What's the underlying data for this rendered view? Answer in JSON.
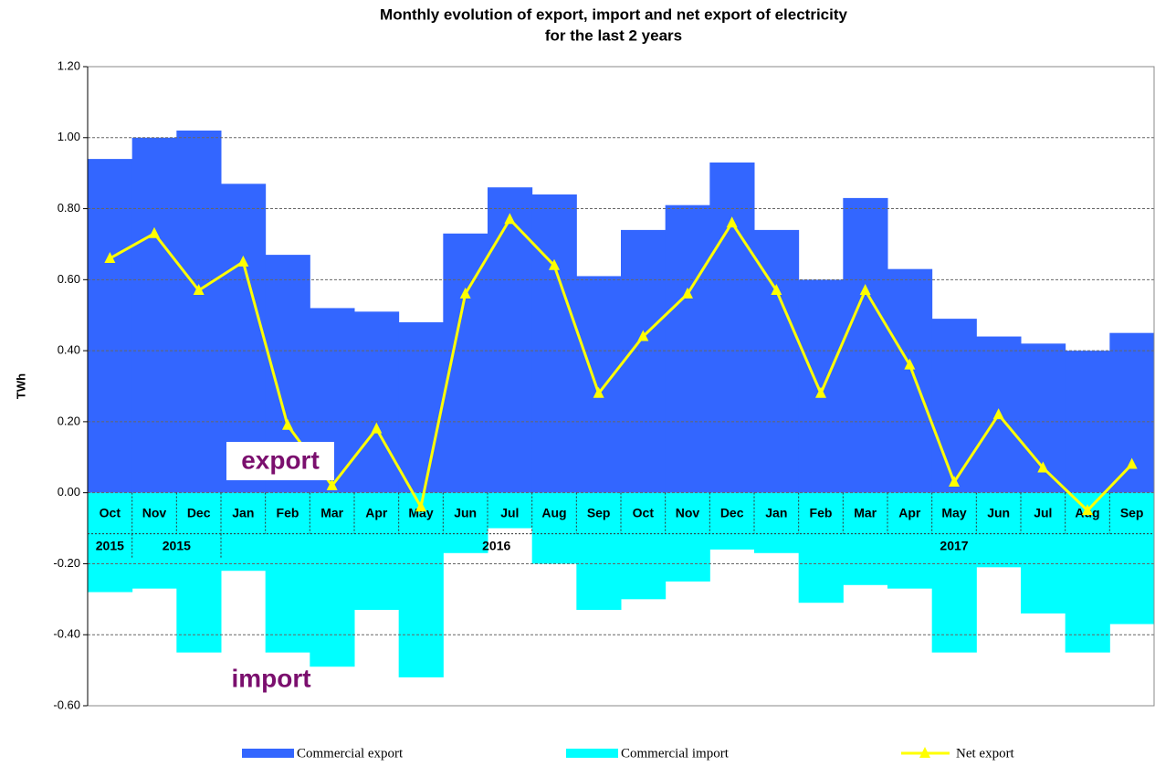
{
  "chart_data": {
    "type": "bar_line",
    "title": [
      "Monthly evolution of export, import and net export of electricity",
      "for the last 2 years"
    ],
    "y_label": "TWh",
    "categories": [
      "Oct",
      "Nov",
      "Dec",
      "Jan",
      "Feb",
      "Mar",
      "Apr",
      "May",
      "Jun",
      "Jul",
      "Aug",
      "Sep",
      "Oct",
      "Nov",
      "Dec",
      "Jan",
      "Feb",
      "Mar",
      "Apr",
      "May",
      "Jun",
      "Jul",
      "Aug",
      "Sep"
    ],
    "years": [
      "2015",
      "2015",
      null,
      null,
      null,
      null,
      null,
      null,
      null,
      "2016",
      null,
      null,
      null,
      null,
      null,
      null,
      null,
      null,
      null,
      "2017",
      null,
      null,
      null,
      null
    ],
    "series": [
      {
        "name": "Commercial export",
        "kind": "bar",
        "color": "#3366ff",
        "values": [
          0.94,
          1.0,
          1.02,
          0.87,
          0.67,
          0.52,
          0.51,
          0.48,
          0.73,
          0.86,
          0.84,
          0.61,
          0.74,
          0.81,
          0.93,
          0.74,
          0.6,
          0.83,
          0.63,
          0.49,
          0.44,
          0.42,
          0.4,
          0.45
        ]
      },
      {
        "name": "Commercial import",
        "kind": "bar",
        "color": "#00ffff",
        "values": [
          -0.28,
          -0.27,
          -0.45,
          -0.22,
          -0.45,
          -0.49,
          -0.33,
          -0.52,
          -0.17,
          -0.1,
          -0.2,
          -0.33,
          -0.3,
          -0.25,
          -0.16,
          -0.17,
          -0.31,
          -0.26,
          -0.27,
          -0.45,
          -0.21,
          -0.34,
          -0.45,
          -0.37
        ]
      },
      {
        "name": "Net export",
        "kind": "line",
        "color": "#ffff00",
        "values": [
          0.66,
          0.73,
          0.57,
          0.65,
          0.19,
          0.02,
          0.18,
          -0.04,
          0.56,
          0.77,
          0.64,
          0.28,
          0.44,
          0.56,
          0.76,
          0.57,
          0.28,
          0.57,
          0.36,
          0.03,
          0.22,
          0.07,
          -0.05,
          0.08
        ]
      }
    ],
    "ylim": [
      -0.6,
      1.2
    ],
    "yticks": [
      {
        "value": -0.6,
        "label": "-0.60"
      },
      {
        "value": -0.4,
        "label": "-0.40"
      },
      {
        "value": -0.2,
        "label": "-0.20"
      },
      {
        "value": 0,
        "label": "0.00"
      },
      {
        "value": 0.2,
        "label": "0.20"
      },
      {
        "value": 0.4,
        "label": "0.40"
      },
      {
        "value": 0.6,
        "label": "0.60"
      },
      {
        "value": 0.8,
        "label": "0.80"
      },
      {
        "value": 1.0,
        "label": "1.00"
      },
      {
        "value": 1.2,
        "label": "1.20"
      }
    ],
    "grid": true,
    "annotations": [
      "export",
      "import"
    ]
  }
}
